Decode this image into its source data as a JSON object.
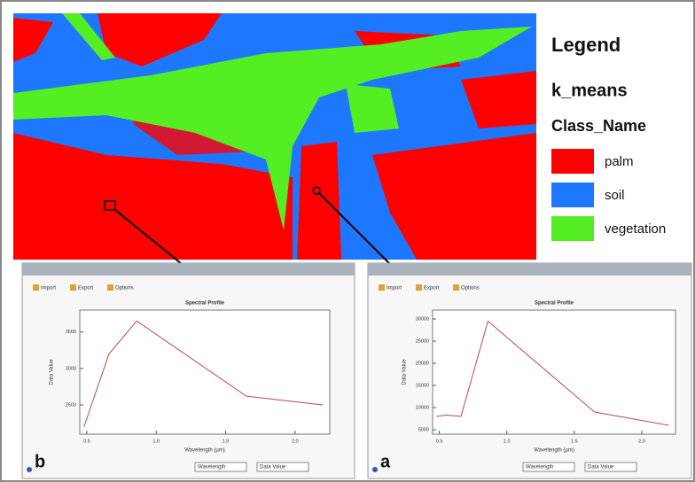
{
  "legend": {
    "title": "Legend",
    "layer": "k_means",
    "field": "Class_Name",
    "items": [
      {
        "label": "palm",
        "color": "#ff0000"
      },
      {
        "label": "soil",
        "color": "#1e78ff"
      },
      {
        "label": "vegetation",
        "color": "#55ee22"
      }
    ]
  },
  "panels": [
    {
      "letter": "b",
      "toolbar": [
        "Import",
        "Export",
        "Options"
      ],
      "dropdowns": [
        "Wavelength",
        "Data Value"
      ],
      "chart": {
        "type": "line",
        "title": "Spectral Profile",
        "x_label": "Wavelength (µm)",
        "y_label": "Data Value",
        "color": "#c04848",
        "x": [
          0.48,
          0.66,
          0.86,
          1.65,
          2.2
        ],
        "values": [
          2200,
          3200,
          3650,
          2620,
          2500
        ],
        "xlim": [
          0.45,
          2.25
        ],
        "ylim": [
          2100,
          3800
        ],
        "xticks": [
          0.5,
          {
            "value": 1,
            "label": "1.0"
          },
          1.5,
          {
            "value": 2,
            "label": "2.0"
          }
        ],
        "yticks": [
          2500,
          3000,
          3500
        ]
      }
    },
    {
      "letter": "a",
      "toolbar": [
        "Import",
        "Export",
        "Options"
      ],
      "dropdowns": [
        "Wavelength",
        "Data Value"
      ],
      "chart": {
        "type": "line",
        "title": "Spectral Profile",
        "x_label": "Wavelength (µm)",
        "y_label": "Data Value",
        "color": "#c04848",
        "x": [
          0.48,
          0.55,
          0.66,
          0.86,
          1.65,
          2.2
        ],
        "values": [
          8000,
          8300,
          8000,
          29500,
          9000,
          6000
        ],
        "xlim": [
          0.45,
          2.25
        ],
        "ylim": [
          4000,
          32000
        ],
        "xticks": [
          0.5,
          {
            "value": 1,
            "label": "1.0"
          },
          1.5,
          {
            "value": 2,
            "label": "2.0"
          }
        ],
        "yticks": [
          5000,
          10000,
          15000,
          20000,
          25000,
          30000
        ]
      }
    }
  ]
}
